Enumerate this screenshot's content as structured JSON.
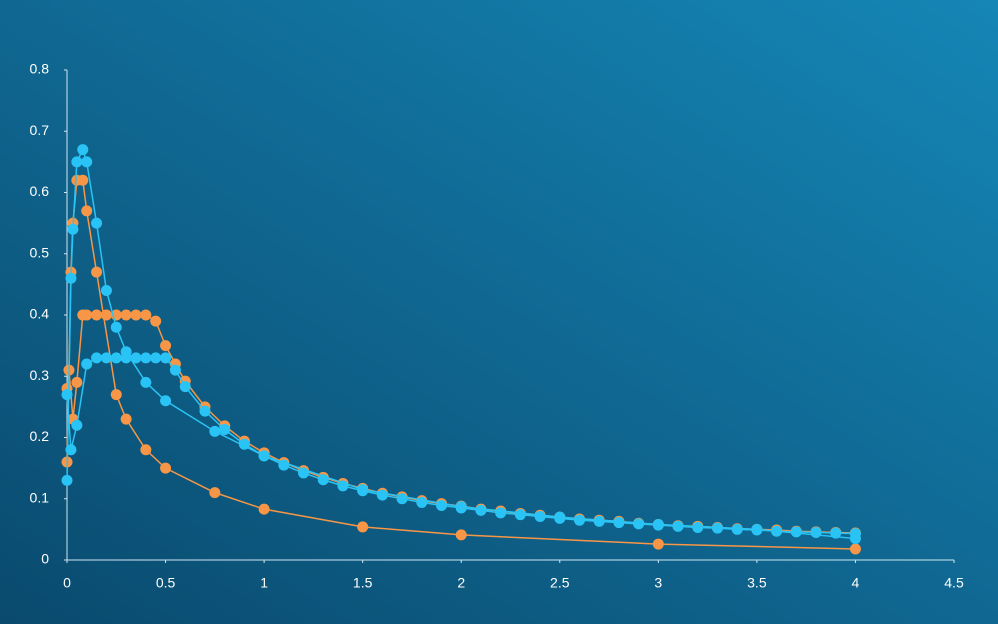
{
  "chart_data": {
    "type": "scatter",
    "xlim": [
      0,
      4.5
    ],
    "xticks": [
      0,
      0.5,
      1,
      1.5,
      2,
      2.5,
      3,
      3.5,
      4,
      4.5
    ],
    "ylim": [
      0,
      0.8
    ],
    "yticks": [
      0,
      0.1,
      0.2,
      0.3,
      0.4,
      0.5,
      0.6,
      0.7,
      0.8
    ],
    "series": [
      {
        "color": "#f79646",
        "x": [
          0,
          0.02,
          0.03,
          0.05,
          0.08,
          0.1,
          0.15,
          0.25,
          0.3,
          0.4,
          0.5,
          0.75,
          1,
          1.5,
          2,
          3,
          4
        ],
        "values": [
          0.16,
          0.47,
          0.55,
          0.62,
          0.62,
          0.57,
          0.47,
          0.27,
          0.23,
          0.18,
          0.15,
          0.11,
          0.083,
          0.054,
          0.041,
          0.026,
          0.018
        ]
      },
      {
        "color": "#f79646",
        "x": [
          0,
          0.01,
          0.03,
          0.05,
          0.08,
          0.1,
          0.15,
          0.2,
          0.25,
          0.3,
          0.35,
          0.4,
          0.45,
          0.5,
          0.55,
          0.6,
          0.7,
          0.8,
          0.9,
          1,
          1.1,
          1.2,
          1.3,
          1.4,
          1.5,
          1.6,
          1.7,
          1.8,
          1.9,
          2,
          2.1,
          2.2,
          2.3,
          2.4,
          2.5,
          2.6,
          2.7,
          2.8,
          2.9,
          3,
          3.1,
          3.2,
          3.3,
          3.4,
          3.5,
          3.6,
          3.7,
          3.8,
          3.9,
          4
        ],
        "values": [
          0.28,
          0.31,
          0.23,
          0.29,
          0.4,
          0.4,
          0.4,
          0.4,
          0.4,
          0.4,
          0.4,
          0.4,
          0.39,
          0.35,
          0.32,
          0.292,
          0.25,
          0.219,
          0.194,
          0.175,
          0.159,
          0.146,
          0.135,
          0.125,
          0.117,
          0.109,
          0.103,
          0.097,
          0.092,
          0.088,
          0.083,
          0.08,
          0.076,
          0.073,
          0.07,
          0.067,
          0.065,
          0.063,
          0.06,
          0.058,
          0.056,
          0.055,
          0.053,
          0.051,
          0.05,
          0.049,
          0.047,
          0.046,
          0.045,
          0.044
        ]
      },
      {
        "color": "#29c4f5",
        "x": [
          0,
          0.02,
          0.05,
          0.1,
          0.15,
          0.2,
          0.25,
          0.3,
          0.35,
          0.4,
          0.45,
          0.5,
          0.55,
          0.6,
          0.7,
          0.8,
          0.9,
          1,
          1.1,
          1.2,
          1.3,
          1.4,
          1.5,
          1.6,
          1.7,
          1.8,
          1.9,
          2,
          2.1,
          2.2,
          2.3,
          2.4,
          2.5,
          2.6,
          2.7,
          2.8,
          2.9,
          3,
          3.1,
          3.2,
          3.3,
          3.4,
          3.5,
          3.6,
          3.7,
          3.8,
          3.9,
          4
        ],
        "values": [
          0.27,
          0.18,
          0.22,
          0.32,
          0.33,
          0.33,
          0.33,
          0.33,
          0.33,
          0.33,
          0.33,
          0.33,
          0.31,
          0.283,
          0.243,
          0.213,
          0.189,
          0.17,
          0.155,
          0.142,
          0.131,
          0.121,
          0.113,
          0.106,
          0.1,
          0.094,
          0.089,
          0.085,
          0.081,
          0.077,
          0.074,
          0.071,
          0.068,
          0.065,
          0.063,
          0.061,
          0.059,
          0.057,
          0.055,
          0.053,
          0.052,
          0.05,
          0.049,
          0.047,
          0.046,
          0.045,
          0.044,
          0.043
        ]
      },
      {
        "color": "#29c4f5",
        "x": [
          0,
          0.02,
          0.03,
          0.05,
          0.08,
          0.1,
          0.15,
          0.2,
          0.25,
          0.3,
          0.4,
          0.5,
          0.75,
          1,
          1.5,
          2,
          2.5,
          3,
          3.5,
          4
        ],
        "values": [
          0.13,
          0.46,
          0.54,
          0.65,
          0.67,
          0.65,
          0.55,
          0.44,
          0.38,
          0.34,
          0.29,
          0.26,
          0.21,
          0.17,
          0.115,
          0.087,
          0.07,
          0.058,
          0.05,
          0.035
        ]
      }
    ]
  }
}
